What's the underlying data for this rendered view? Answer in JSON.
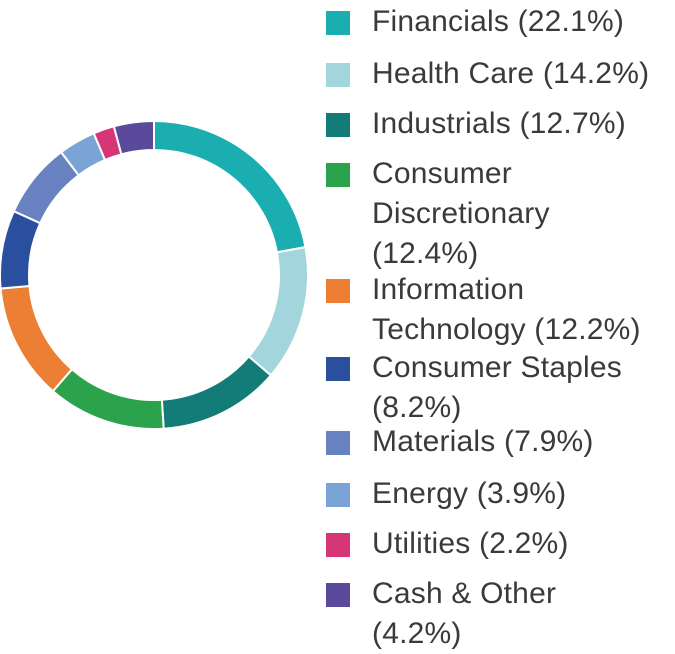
{
  "chart_data": {
    "type": "pie",
    "variant": "donut",
    "legend_placement": "right",
    "slices": [
      {
        "label": "Financials (22.1%)",
        "value": 22.1,
        "color": "#1aaeb0"
      },
      {
        "label": "Health Care (14.2%)",
        "value": 14.2,
        "color": "#a3d5dc"
      },
      {
        "label": "Industrials (12.7%)",
        "value": 12.7,
        "color": "#147c78"
      },
      {
        "label": "Consumer\nDiscretionary\n(12.4%)",
        "value": 12.4,
        "color": "#2ba24c"
      },
      {
        "label": "Information\nTechnology (12.2%)",
        "value": 12.2,
        "color": "#ec7f33"
      },
      {
        "label": "Consumer Staples\n(8.2%)",
        "value": 8.2,
        "color": "#2a4f9e"
      },
      {
        "label": "Materials (7.9%)",
        "value": 7.9,
        "color": "#6881c0"
      },
      {
        "label": "Energy (3.9%)",
        "value": 3.9,
        "color": "#7aa3d6"
      },
      {
        "label": "Utilities (2.2%)",
        "value": 2.2,
        "color": "#d63577"
      },
      {
        "label": "Cash & Other\n(4.2%)",
        "value": 4.2,
        "color": "#5b4a9c"
      }
    ]
  }
}
